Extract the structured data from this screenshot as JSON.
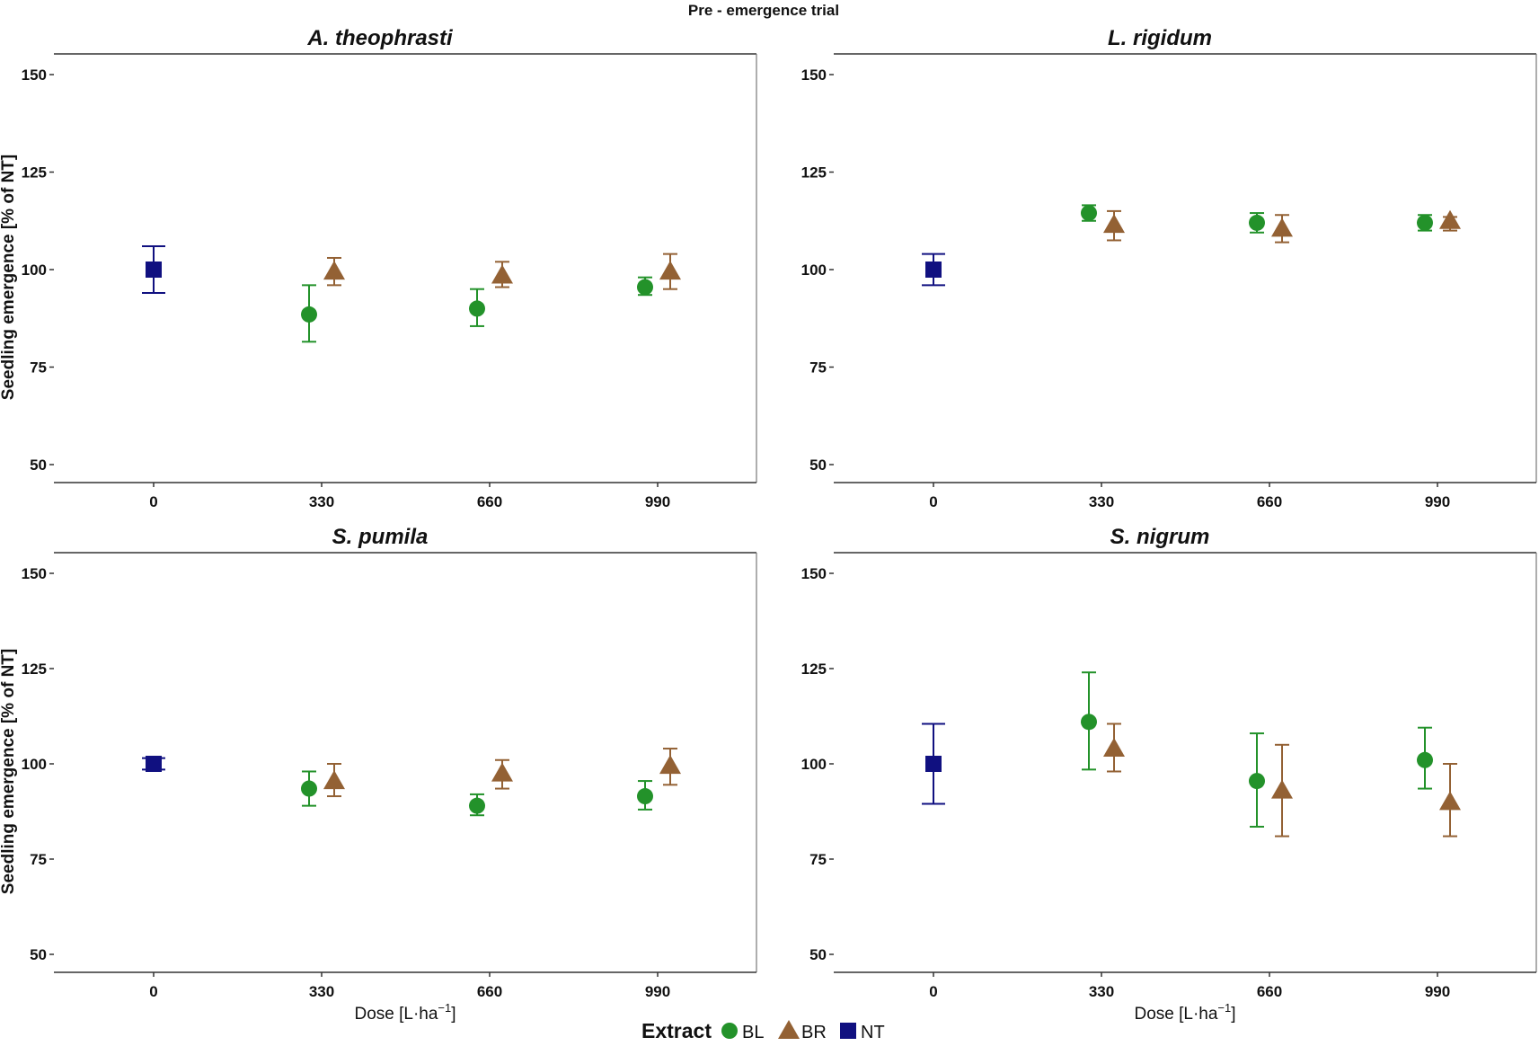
{
  "chart_data": {
    "type": "scatter",
    "title": "Pre - emergence trial",
    "ylabel": "Seedling emergence  [% of NT]",
    "xlabel_prefix": "Dose  [L",
    "xlabel_unit": "ha",
    "xlabel_exponent": "−1",
    "xlabel_suffix": "]",
    "ylim": [
      50,
      150
    ],
    "yticks": [
      50,
      75,
      100,
      125,
      150
    ],
    "categories": [
      "0",
      "330",
      "660",
      "990"
    ],
    "legend": {
      "title": "Extract",
      "entries": [
        {
          "key": "BL",
          "label": "BL",
          "color": "#23922a",
          "marker": "circle"
        },
        {
          "key": "BR",
          "label": "BR",
          "color": "#936134",
          "marker": "triangle"
        },
        {
          "key": "NT",
          "label": "NT",
          "color": "#101080",
          "marker": "square"
        }
      ]
    },
    "panels": [
      {
        "title": "A. theophrasti",
        "points": [
          {
            "series": "NT",
            "dose": "0",
            "value": 100,
            "lower": 94,
            "upper": 106
          },
          {
            "series": "BL",
            "dose": "330",
            "value": 88.5,
            "lower": 81.5,
            "upper": 96
          },
          {
            "series": "BR",
            "dose": "330",
            "value": 99.5,
            "lower": 96,
            "upper": 103
          },
          {
            "series": "BL",
            "dose": "660",
            "value": 90,
            "lower": 85.5,
            "upper": 95
          },
          {
            "series": "BR",
            "dose": "660",
            "value": 98.5,
            "lower": 95.5,
            "upper": 102
          },
          {
            "series": "BL",
            "dose": "990",
            "value": 95.5,
            "lower": 93.5,
            "upper": 98
          },
          {
            "series": "BR",
            "dose": "990",
            "value": 99.5,
            "lower": 95,
            "upper": 104
          }
        ]
      },
      {
        "title": "L. rigidum",
        "points": [
          {
            "series": "NT",
            "dose": "0",
            "value": 100,
            "lower": 96,
            "upper": 104
          },
          {
            "series": "BL",
            "dose": "330",
            "value": 114.5,
            "lower": 112.5,
            "upper": 116.5
          },
          {
            "series": "BR",
            "dose": "330",
            "value": 111.5,
            "lower": 107.5,
            "upper": 115
          },
          {
            "series": "BL",
            "dose": "660",
            "value": 112,
            "lower": 109.5,
            "upper": 114.5
          },
          {
            "series": "BR",
            "dose": "660",
            "value": 110.5,
            "lower": 107,
            "upper": 114
          },
          {
            "series": "BL",
            "dose": "990",
            "value": 112,
            "lower": 110,
            "upper": 114
          },
          {
            "series": "BR",
            "dose": "990",
            "value": 112.5,
            "lower": 110,
            "upper": 113.5
          }
        ]
      },
      {
        "title": "S. pumila",
        "points": [
          {
            "series": "NT",
            "dose": "0",
            "value": 100,
            "lower": 98.5,
            "upper": 101.5
          },
          {
            "series": "BL",
            "dose": "330",
            "value": 93.5,
            "lower": 89,
            "upper": 98
          },
          {
            "series": "BR",
            "dose": "330",
            "value": 95.5,
            "lower": 91.5,
            "upper": 100
          },
          {
            "series": "BL",
            "dose": "660",
            "value": 89,
            "lower": 86.5,
            "upper": 92
          },
          {
            "series": "BR",
            "dose": "660",
            "value": 97.5,
            "lower": 93.5,
            "upper": 101
          },
          {
            "series": "BL",
            "dose": "990",
            "value": 91.5,
            "lower": 88,
            "upper": 95.5
          },
          {
            "series": "BR",
            "dose": "990",
            "value": 99.5,
            "lower": 94.5,
            "upper": 104
          }
        ]
      },
      {
        "title": "S. nigrum",
        "points": [
          {
            "series": "NT",
            "dose": "0",
            "value": 100,
            "lower": 89.5,
            "upper": 110.5
          },
          {
            "series": "BL",
            "dose": "330",
            "value": 111,
            "lower": 98.5,
            "upper": 124
          },
          {
            "series": "BR",
            "dose": "330",
            "value": 104,
            "lower": 98,
            "upper": 110.5
          },
          {
            "series": "BL",
            "dose": "660",
            "value": 95.5,
            "lower": 83.5,
            "upper": 108
          },
          {
            "series": "BR",
            "dose": "660",
            "value": 93,
            "lower": 81,
            "upper": 105
          },
          {
            "series": "BL",
            "dose": "990",
            "value": 101,
            "lower": 93.5,
            "upper": 109.5
          },
          {
            "series": "BR",
            "dose": "990",
            "value": 90,
            "lower": 81,
            "upper": 100
          }
        ]
      }
    ]
  }
}
